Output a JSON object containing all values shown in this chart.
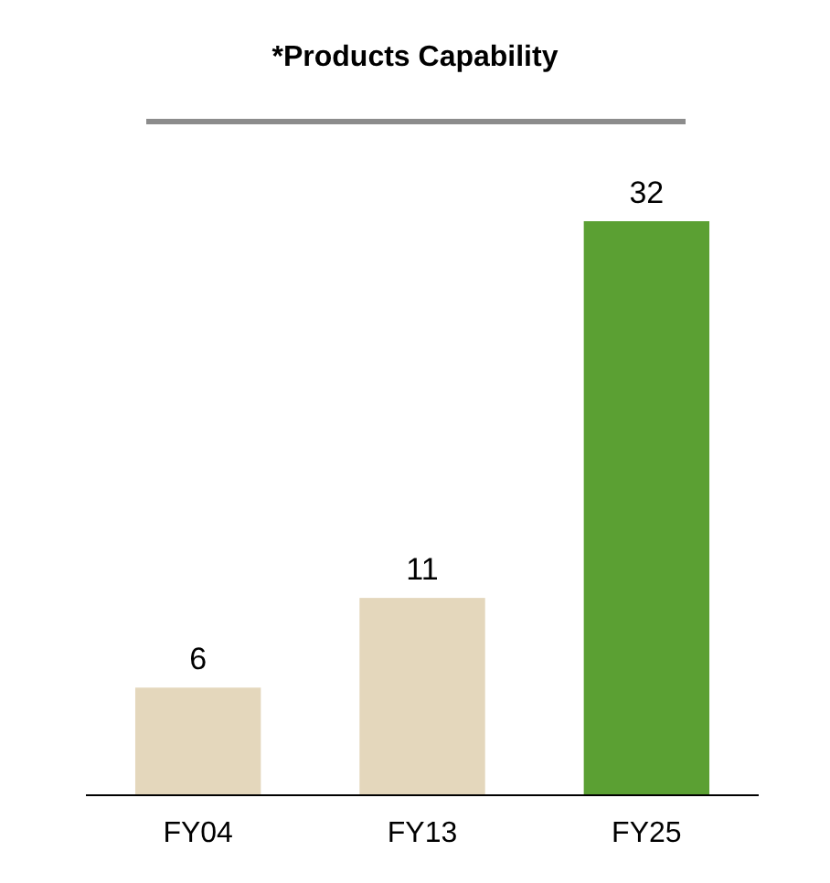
{
  "chart_data": {
    "type": "bar",
    "title": "*Products Capability",
    "categories": [
      "FY04",
      "FY13",
      "FY25"
    ],
    "values": [
      6,
      11,
      32
    ],
    "colors": [
      "#e4d7bc",
      "#e4d7bc",
      "#5ba033"
    ],
    "data_labels": true
  }
}
